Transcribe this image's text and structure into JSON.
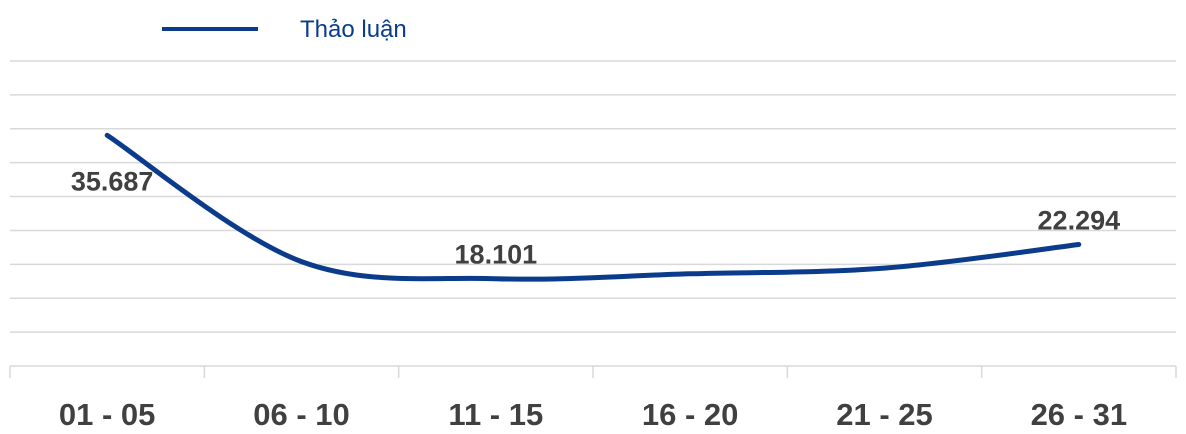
{
  "chart_data": {
    "type": "line",
    "categories": [
      "01 - 05",
      "06 - 10",
      "11 - 15",
      "16 - 20",
      "21 - 25",
      "26 - 31"
    ],
    "series": [
      {
        "name": "Thảo luận",
        "values": [
          35687,
          20200,
          18101,
          18700,
          19400,
          22294
        ]
      }
    ],
    "data_labels": [
      {
        "index": 0,
        "text": "35.687"
      },
      {
        "index": 2,
        "text": "18.101"
      },
      {
        "index": 5,
        "text": "22.294"
      }
    ],
    "ylim": [
      7400,
      44800
    ],
    "grid": true,
    "legend_position": "top-left",
    "colors": {
      "series": "#0B3C8C",
      "grid": "#D9D9D9",
      "label": "#404040",
      "legend_text": "#0B3C8C"
    }
  }
}
